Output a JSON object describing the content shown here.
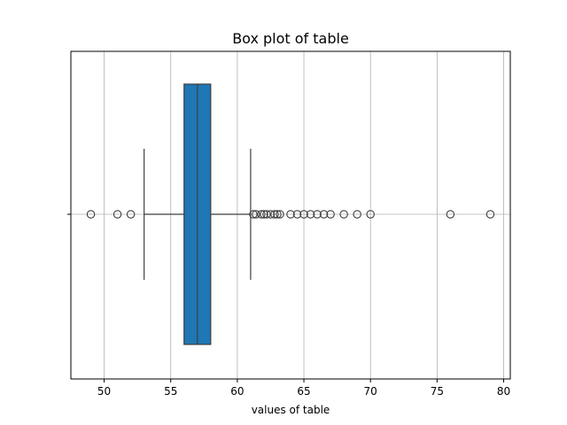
{
  "chart_data": {
    "type": "box",
    "title": "Box plot of table",
    "xlabel": "values of table",
    "ylabel": "",
    "xlim": [
      47.5,
      80.5
    ],
    "xticks": [
      50,
      55,
      60,
      65,
      70,
      75,
      80
    ],
    "grid": true,
    "box_color": "#1f77b4",
    "box": {
      "q1": 56,
      "median": 57,
      "q3": 58,
      "whisker_low": 53,
      "whisker_high": 61
    },
    "outliers": [
      49,
      51,
      52,
      61.2,
      61.4,
      61.8,
      62,
      62.2,
      62.5,
      62.8,
      63,
      63.2,
      64,
      64.5,
      65,
      65.5,
      66,
      66.5,
      67,
      68,
      69,
      70,
      76,
      79
    ]
  }
}
